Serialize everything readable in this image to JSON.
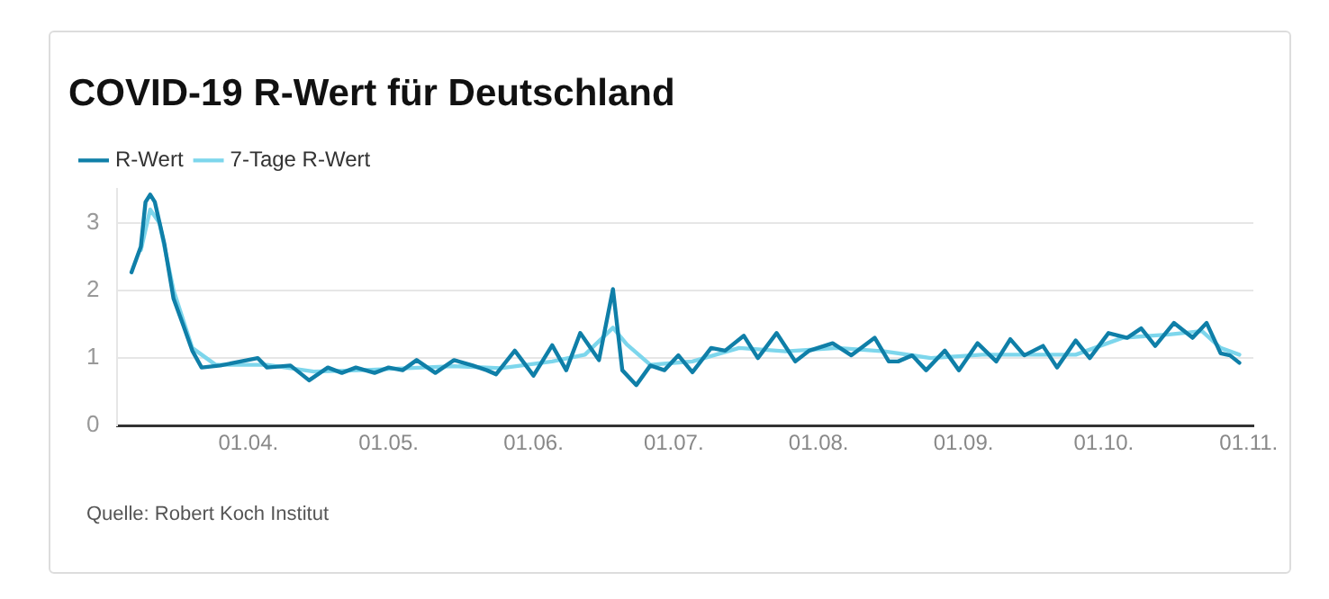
{
  "chart_data": {
    "type": "line",
    "title": "COVID-19 R-Wert für Deutschland",
    "series": [
      {
        "name": "R-Wert",
        "color": "#0f7fa8",
        "x": [
          "--03-07",
          "--03-09",
          "--03-10",
          "--03-11",
          "--03-12",
          "--03-14",
          "--03-16",
          "--03-18",
          "--03-20",
          "--03-22",
          "--03-26",
          "--04-03",
          "--04-05",
          "--04-10",
          "--04-14",
          "--04-18",
          "--04-21",
          "--04-24",
          "--04-28",
          "--05-01",
          "--05-04",
          "--05-07",
          "--05-11",
          "--05-15",
          "--05-19",
          "--05-22",
          "--05-24",
          "--05-28",
          "--06-01",
          "--06-05",
          "--06-08",
          "--06-11",
          "--06-15",
          "--06-18",
          "--06-20",
          "--06-23",
          "--06-26",
          "--06-29",
          "--07-02",
          "--07-05",
          "--07-09",
          "--07-12",
          "--07-16",
          "--07-19",
          "--07-23",
          "--07-27",
          "--07-30",
          "--08-04",
          "--08-08",
          "--08-13",
          "--08-16",
          "--08-18",
          "--08-21",
          "--08-24",
          "--08-28",
          "--08-31",
          "--09-04",
          "--09-08",
          "--09-11",
          "--09-14",
          "--09-18",
          "--09-21",
          "--09-25",
          "--09-28",
          "--10-02",
          "--10-06",
          "--10-09",
          "--10-12",
          "--10-16",
          "--10-20",
          "--10-23",
          "--10-26",
          "--10-28",
          "--10-30"
        ],
        "values": [
          2.27,
          2.65,
          3.31,
          3.42,
          3.31,
          2.7,
          1.88,
          1.5,
          1.11,
          0.86,
          0.89,
          1.0,
          0.86,
          0.89,
          0.67,
          0.86,
          0.78,
          0.86,
          0.78,
          0.86,
          0.82,
          0.97,
          0.78,
          0.97,
          0.89,
          0.82,
          0.76,
          1.11,
          0.74,
          1.19,
          0.82,
          1.37,
          0.97,
          2.02,
          0.82,
          0.6,
          0.89,
          0.82,
          1.04,
          0.79,
          1.15,
          1.11,
          1.33,
          1.0,
          1.37,
          0.95,
          1.11,
          1.22,
          1.04,
          1.3,
          0.95,
          0.95,
          1.04,
          0.82,
          1.11,
          0.82,
          1.22,
          0.95,
          1.28,
          1.04,
          1.18,
          0.86,
          1.26,
          1.0,
          1.37,
          1.3,
          1.44,
          1.18,
          1.52,
          1.3,
          1.52,
          1.07,
          1.04,
          0.93
        ]
      },
      {
        "name": "7-Tage R-Wert",
        "color": "#7dd6ec",
        "x": [
          "--03-09",
          "--03-11",
          "--03-13",
          "--03-16",
          "--03-20",
          "--03-25",
          "--04-05",
          "--04-15",
          "--04-25",
          "--05-05",
          "--05-15",
          "--05-25",
          "--06-05",
          "--06-12",
          "--06-18",
          "--06-21",
          "--06-26",
          "--07-05",
          "--07-15",
          "--07-25",
          "--08-05",
          "--08-15",
          "--08-25",
          "--09-05",
          "--09-15",
          "--09-25",
          "--10-05",
          "--10-15",
          "--10-22",
          "--10-26",
          "--10-30"
        ],
        "values": [
          2.6,
          3.2,
          3.0,
          2.0,
          1.15,
          0.9,
          0.9,
          0.8,
          0.82,
          0.85,
          0.88,
          0.85,
          0.95,
          1.05,
          1.45,
          1.2,
          0.9,
          0.95,
          1.15,
          1.1,
          1.15,
          1.1,
          1.0,
          1.05,
          1.05,
          1.05,
          1.3,
          1.35,
          1.4,
          1.15,
          1.05
        ]
      }
    ],
    "xlim": [
      "--03-04",
      "--11-02"
    ],
    "xticks": [
      {
        "value": "--04-01",
        "label": "01.04."
      },
      {
        "value": "--05-01",
        "label": "01.05."
      },
      {
        "value": "--06-01",
        "label": "01.06."
      },
      {
        "value": "--07-01",
        "label": "01.07."
      },
      {
        "value": "--08-01",
        "label": "01.08."
      },
      {
        "value": "--09-01",
        "label": "01.09."
      },
      {
        "value": "--10-01",
        "label": "01.10."
      },
      {
        "value": "--11-01",
        "label": "01.11."
      }
    ],
    "ylim": [
      0,
      3.5
    ],
    "yticks": [
      0,
      1,
      2,
      3
    ],
    "grid": "y",
    "legend": "top left",
    "marker": "none",
    "line_style": "solid",
    "annotations": [
      "Quelle: Robert Koch Institut"
    ]
  }
}
